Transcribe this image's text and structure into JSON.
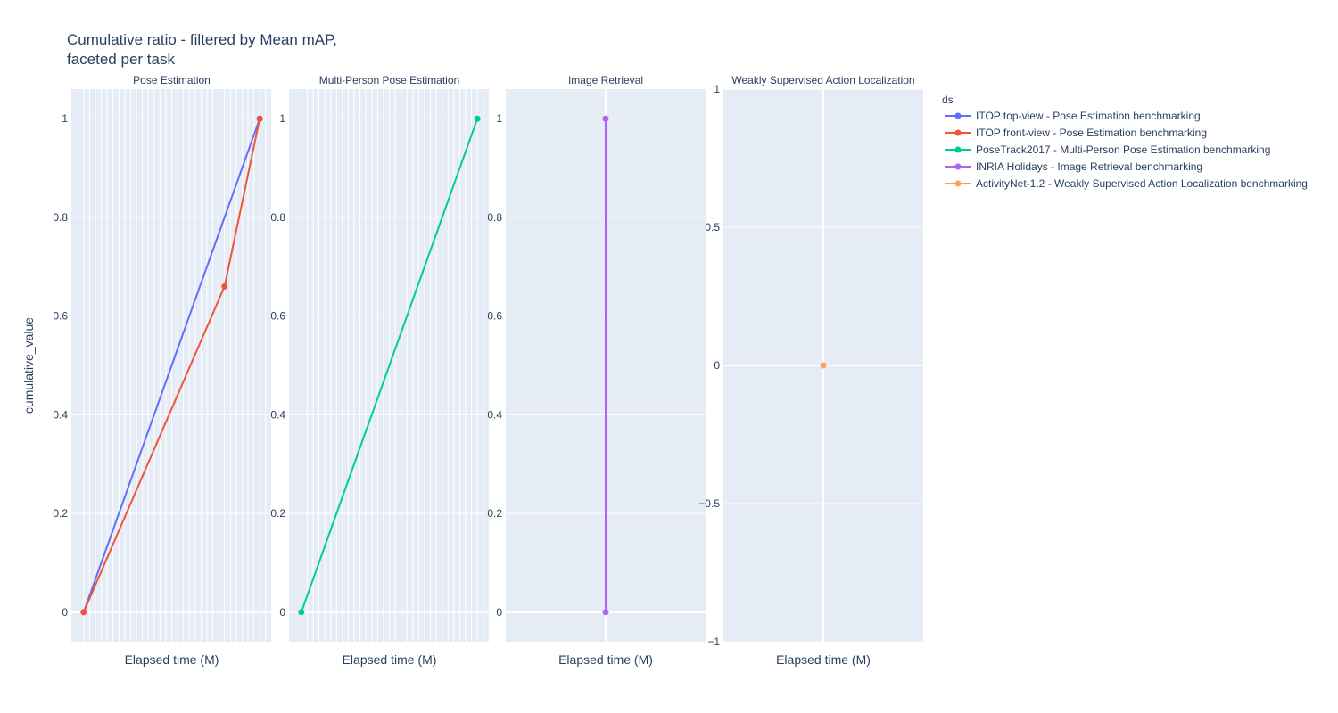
{
  "chart_data": {
    "type": "line",
    "title": [
      "Cumulative ratio - filtered by Mean mAP,",
      "faceted per task"
    ],
    "ylabel": "cumulative_value",
    "xlabel": "Elapsed time (M)",
    "legend": {
      "title": "ds",
      "placement": "top-right"
    },
    "colors": {
      "plot_bg": "#e5ecf6",
      "grid": "#ffffff",
      "text": "#2a3f5f"
    },
    "series": [
      {
        "name": "ITOP top-view - Pose Estimation benchmarking",
        "color": "#636efa",
        "facet": 0,
        "x": [
          0,
          1
        ],
        "y": [
          0,
          1
        ]
      },
      {
        "name": "ITOP front-view - Pose Estimation benchmarking",
        "color": "#ef553b",
        "facet": 0,
        "x": [
          0,
          0.8
        ],
        "y": [
          0,
          0.66
        ],
        "x_end": 1,
        "y_end": 1
      },
      {
        "name": "PoseTrack2017 - Multi-Person Pose Estimation benchmarking",
        "color": "#00cc96",
        "facet": 1,
        "x": [
          0,
          1
        ],
        "y": [
          0,
          1
        ]
      },
      {
        "name": "INRIA Holidays - Image Retrieval benchmarking",
        "color": "#ab63fa",
        "facet": 2,
        "x": [
          0,
          0
        ],
        "y": [
          0,
          1
        ]
      },
      {
        "name": "ActivityNet-1.2 - Weakly Supervised Action Localization benchmarking",
        "color": "#ffa15a",
        "facet": 3,
        "x": [
          0
        ],
        "y": [
          0
        ]
      }
    ],
    "facets": [
      {
        "title": "Pose Estimation",
        "ylim": [
          -0.06,
          1.06
        ],
        "yticks": [
          0,
          0.2,
          0.4,
          0.6,
          0.8,
          1
        ],
        "ytick_labels": [
          "0",
          "0.2",
          "0.4",
          "0.6",
          "0.8",
          "1"
        ],
        "xlim": [
          -0.07,
          1.07
        ],
        "dense_x_grid": true
      },
      {
        "title": "Multi-Person Pose Estimation",
        "ylim": [
          -0.06,
          1.06
        ],
        "yticks": [
          0,
          0.2,
          0.4,
          0.6,
          0.8,
          1
        ],
        "ytick_labels": [
          "0",
          "0.2",
          "0.4",
          "0.6",
          "0.8",
          "1"
        ],
        "xlim": [
          -0.07,
          1.07
        ],
        "dense_x_grid": true
      },
      {
        "title": "Image Retrieval",
        "ylim": [
          -0.06,
          1.06
        ],
        "yticks": [
          0,
          0.2,
          0.4,
          0.6,
          0.8,
          1
        ],
        "ytick_labels": [
          "0",
          "0.2",
          "0.4",
          "0.6",
          "0.8",
          "1"
        ],
        "xlim": [
          -1,
          1
        ],
        "dense_x_grid": false
      },
      {
        "title": "Weakly Supervised Action Localization",
        "ylim": [
          -1,
          1
        ],
        "yticks": [
          -1,
          -0.5,
          0,
          0.5,
          1
        ],
        "ytick_labels": [
          "−1",
          "−0.5",
          "0",
          "0.5",
          "1"
        ],
        "xlim": [
          -1,
          1
        ],
        "dense_x_grid": false
      }
    ]
  }
}
